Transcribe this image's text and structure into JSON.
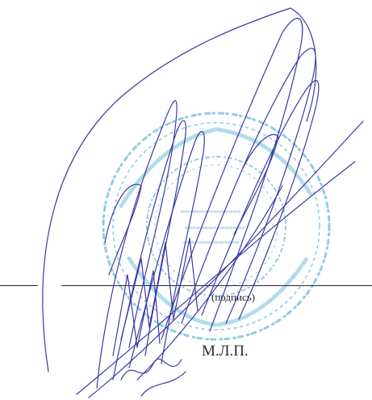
{
  "document": {
    "signature_caption": "(подпись)",
    "seal_place_label": "М.Л.П."
  },
  "colors": {
    "ink": "#3b3aa6",
    "stamp": "#7fc4de",
    "rule": "#2b2b2b",
    "text": "#1f1f2a"
  },
  "icons": [
    "round-stamp-icon",
    "handwritten-signature-icon"
  ]
}
